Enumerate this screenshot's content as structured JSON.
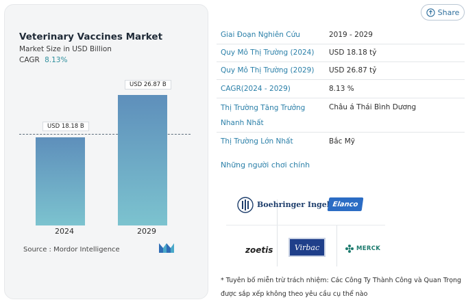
{
  "share": {
    "label": "Share",
    "icon": "share-icon"
  },
  "card": {
    "title": "Veterinary Vaccines Market",
    "subtitle": "Market Size in USD Billion",
    "cagr_label": "CAGR",
    "cagr_value": "8.13%",
    "source": "Source : Mordor Intelligence",
    "logo_icon": "mordor-logo-icon"
  },
  "chart_data": {
    "type": "bar",
    "title": "Veterinary Vaccines Market",
    "ylabel": "Market Size in USD Billion",
    "categories": [
      "2024",
      "2029"
    ],
    "values": [
      18.18,
      26.87
    ],
    "data_labels": [
      "USD 18.18 B",
      "USD 26.87 B"
    ],
    "colors": {
      "bar_top": "#5e8fbb",
      "bar_bottom": "#7cc3cf"
    }
  },
  "table": {
    "rows": [
      {
        "key": "Giai Đoạn Nghiên Cứu",
        "value": "2019 - 2029"
      },
      {
        "key": "Quy Mô Thị Trường (2024)",
        "value": "USD 18.18 tỷ"
      },
      {
        "key": "Quy Mô Thị Trường (2029)",
        "value": "USD 26.87 tỷ"
      },
      {
        "key": "CAGR(2024 - 2029)",
        "value": "8.13 %"
      },
      {
        "key": "Thị Trường Tăng Trưởng Nhanh Nhất",
        "value": "Châu á Thái Bình Dương"
      },
      {
        "key": "Thị Trường Lớn Nhất",
        "value": "Bắc Mỹ"
      }
    ]
  },
  "players": {
    "heading": "Những người chơi chính",
    "logos": [
      "Boehringer Ingelheim",
      "Elanco",
      "zoetis",
      "Virbac",
      "MERCK"
    ]
  },
  "disclaimer": "* Tuyên bố miễn trừ trách nhiệm: Các Công Ty Thành Công và Quan Trọng được sắp xếp không theo yêu cầu cụ thể nào",
  "colors": {
    "accent": "#2a7fa8",
    "card_bg": "#f4f5f6"
  }
}
